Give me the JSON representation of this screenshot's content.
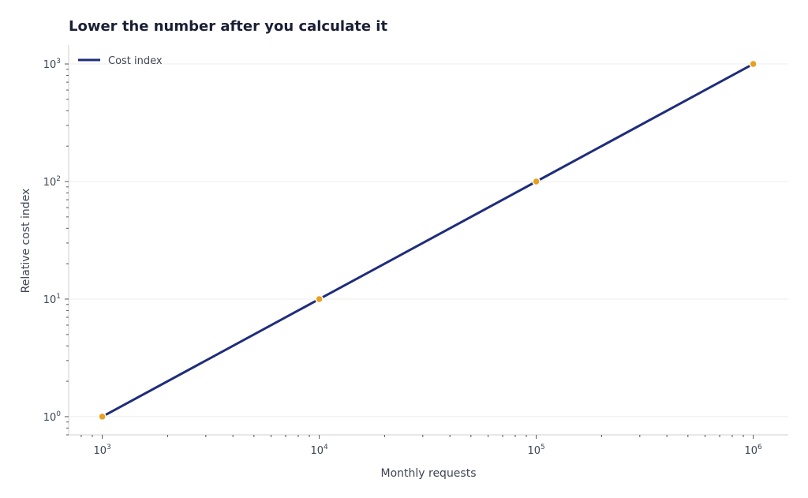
{
  "chart_data": {
    "type": "line",
    "title": "Lower the number after you calculate it",
    "xlabel": "Monthly requests",
    "ylabel": "Relative cost index",
    "x_scale": "log",
    "y_scale": "log",
    "xlim": [
      700,
      1450000
    ],
    "ylim": [
      0.7,
      1450
    ],
    "x_major_ticks": [
      1000,
      10000,
      100000,
      1000000
    ],
    "x_tick_labels": [
      {
        "base": "10",
        "exp": "3"
      },
      {
        "base": "10",
        "exp": "4"
      },
      {
        "base": "10",
        "exp": "5"
      },
      {
        "base": "10",
        "exp": "6"
      }
    ],
    "y_major_ticks": [
      1,
      10,
      100,
      1000
    ],
    "y_tick_labels": [
      {
        "base": "10",
        "exp": "0"
      },
      {
        "base": "10",
        "exp": "1"
      },
      {
        "base": "10",
        "exp": "2"
      },
      {
        "base": "10",
        "exp": "3"
      }
    ],
    "grid": "horizontal major",
    "legend_position": "top-left",
    "series": [
      {
        "name": "Cost index",
        "x": [
          1000,
          10000,
          100000,
          1000000
        ],
        "y": [
          1,
          10,
          100,
          1000
        ],
        "line_color": "#1f2d7a",
        "marker_color": "#e8a020"
      }
    ]
  }
}
